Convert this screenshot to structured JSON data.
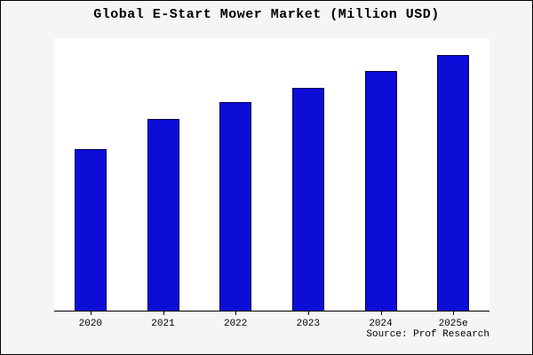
{
  "title": "Global E-Start Mower Market (Million USD)",
  "source": "Source: Prof Research",
  "colors": {
    "bar_fill": "#0d0dd8",
    "bar_border": "#00004d",
    "background": "#f5f5f5",
    "plot_background": "#ffffff",
    "axis": "#000000"
  },
  "chart_data": {
    "type": "bar",
    "title": "Global E-Start Mower Market (Million USD)",
    "categories": [
      "2020",
      "2021",
      "2022",
      "2023",
      "2024",
      "2025e"
    ],
    "values": [
      190,
      225,
      245,
      262,
      281,
      300
    ],
    "xlabel": "",
    "ylabel": "",
    "ylim": [
      0,
      320
    ],
    "grid": false,
    "legend": false,
    "y_axis_labels_visible": false,
    "source": "Source: Prof Research"
  }
}
